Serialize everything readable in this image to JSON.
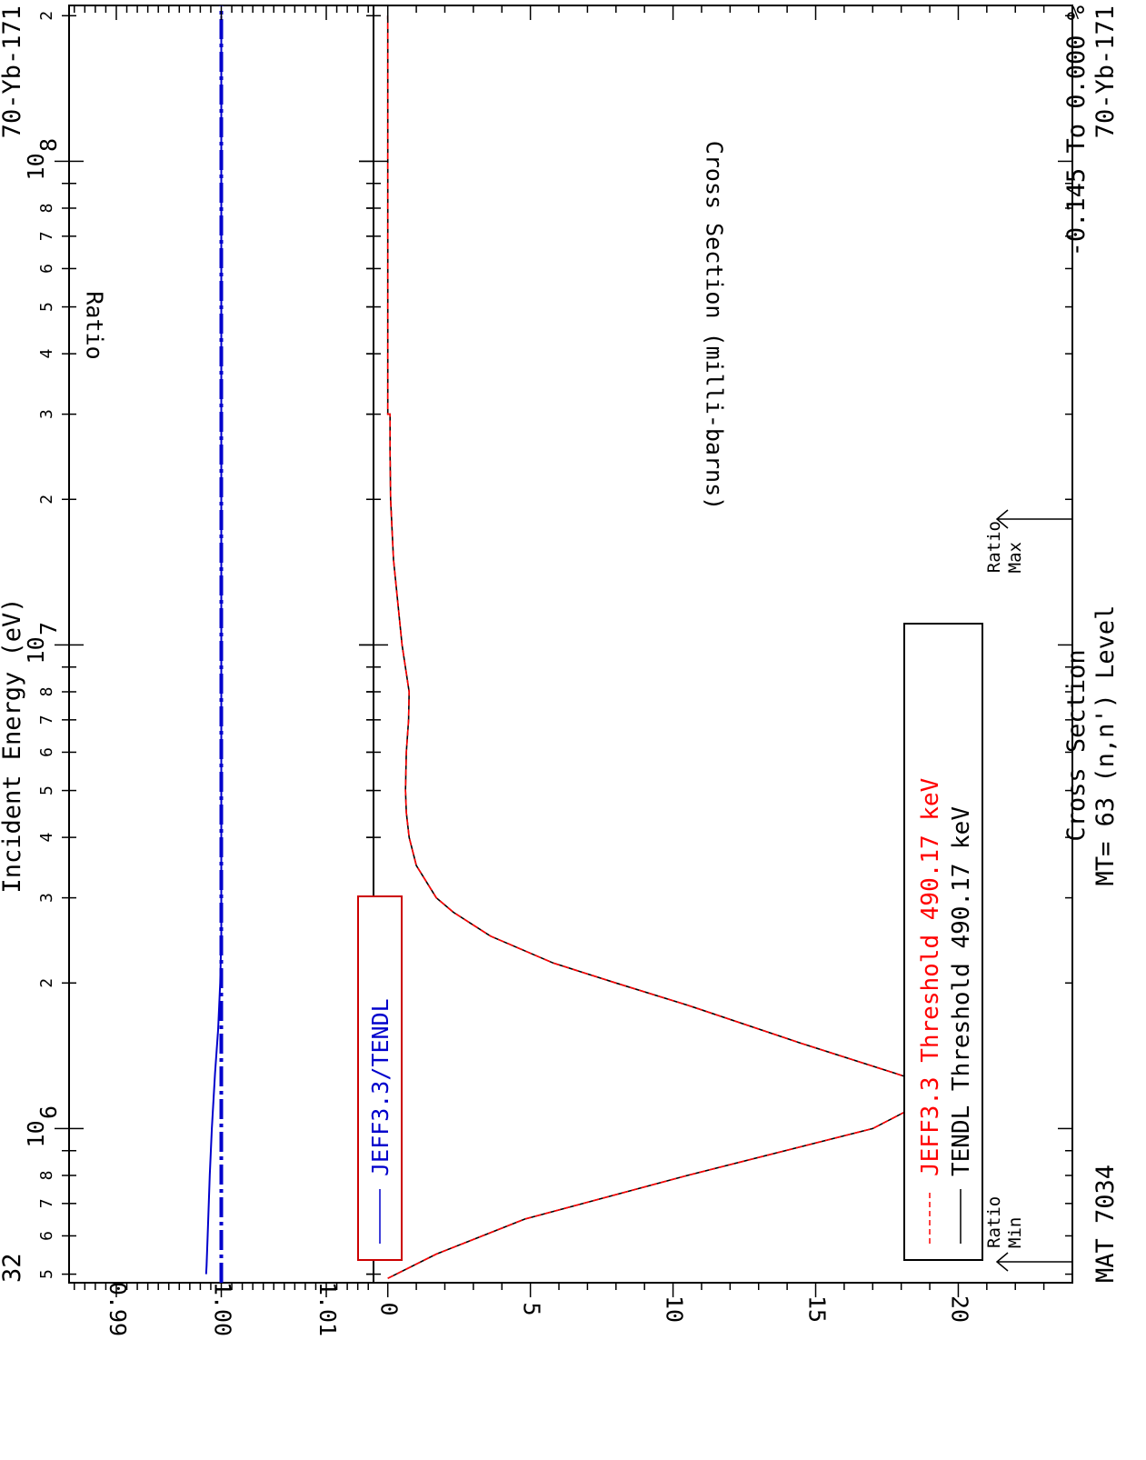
{
  "header": {
    "mat": "MAT 7034",
    "reaction": "MT= 63 (n,n') Level",
    "quantity": "Cross Section",
    "isotope_top": "70-Yb-171",
    "isotope_bottom": "70-Yb-171",
    "ratio_range": "-0.145 To 0.000 %",
    "page_number": "32"
  },
  "markers": {
    "min": [
      "Min",
      "Ratio"
    ],
    "max": [
      "Max",
      "Ratio"
    ]
  },
  "colors": {
    "tendl": "#000000",
    "jeff": "#ff0000",
    "ratio": "#0000cc",
    "axes": "#000000"
  },
  "chart_data": [
    {
      "type": "line",
      "title": "MT= 63 (n,n') Level Cross Section",
      "xlabel": "Incident Energy (eV)",
      "ylabel": "Cross Section (milli-barns)",
      "x_scale": "log",
      "xlim": [
        480000,
        210000000
      ],
      "ylim": [
        -0.5,
        24
      ],
      "yticks": [
        0,
        5,
        10,
        15,
        20
      ],
      "ytick_labels": [
        "0",
        "5",
        "10",
        "15",
        "20"
      ],
      "grid": false,
      "legend_position": "top-left",
      "series": [
        {
          "name": "TENDL Threshold 490.17 keV",
          "color": "#000000",
          "style": "solid",
          "x": [
            490170,
            550000,
            650000,
            800000,
            1000000,
            1200000,
            1300000,
            1500000,
            1800000,
            2000000,
            2200000,
            2500000,
            2800000,
            3000000,
            3500000,
            4000000,
            4500000,
            5000000,
            6000000,
            7000000,
            8000000,
            10000000,
            15000000,
            20000000,
            25000000,
            30000000,
            30000001,
            200000000
          ],
          "y": [
            0,
            1.7,
            4.8,
            10.5,
            17.0,
            19.6,
            17.8,
            14.5,
            10.5,
            8.0,
            5.8,
            3.6,
            2.3,
            1.7,
            1.0,
            0.75,
            0.65,
            0.62,
            0.65,
            0.73,
            0.75,
            0.5,
            0.2,
            0.1,
            0.08,
            0.08,
            0.0,
            0.0
          ]
        },
        {
          "name": "JEFF3.3 Threshold 490.17 keV",
          "color": "#ff0000",
          "style": "dashed",
          "x": [
            490170,
            550000,
            650000,
            800000,
            1000000,
            1200000,
            1300000,
            1500000,
            1800000,
            2000000,
            2200000,
            2500000,
            2800000,
            3000000,
            3500000,
            4000000,
            4500000,
            5000000,
            6000000,
            7000000,
            8000000,
            10000000,
            15000000,
            20000000,
            25000000,
            30000000,
            30000001,
            200000000
          ],
          "y": [
            0,
            1.7,
            4.8,
            10.5,
            17.0,
            19.6,
            17.8,
            14.5,
            10.5,
            8.0,
            5.8,
            3.6,
            2.3,
            1.7,
            1.0,
            0.75,
            0.65,
            0.62,
            0.65,
            0.73,
            0.75,
            0.5,
            0.2,
            0.1,
            0.08,
            0.08,
            0.0,
            0.0
          ]
        }
      ]
    },
    {
      "type": "line",
      "xlabel": "Incident Energy (eV)",
      "ylabel": "Ratio",
      "x_scale": "log",
      "xlim": [
        480000,
        210000000
      ],
      "ylim": [
        0.9855,
        1.0145
      ],
      "yticks": [
        0.99,
        1.0,
        1.01
      ],
      "ytick_labels": [
        "0.99",
        "1.00",
        "1.01"
      ],
      "xtick_labels": [
        "5",
        "6",
        "7",
        "8",
        "10",
        "2",
        "3",
        "4",
        "5",
        "6",
        "7",
        "8",
        "10",
        "2",
        "3",
        "4",
        "5",
        "6",
        "7",
        "8",
        "10",
        "2"
      ],
      "grid": false,
      "legend_position": "top-left",
      "series": [
        {
          "name": "JEFF3.3/TENDL",
          "color": "#0000cc",
          "style": "solid",
          "x": [
            500000,
            520000,
            600000,
            800000,
            1000000,
            1300000,
            1600000,
            2000000,
            2500000,
            3000000,
            200000000
          ],
          "y": [
            0.99855,
            0.9986,
            0.9987,
            0.9989,
            0.9991,
            0.9994,
            0.9997,
            0.9999,
            1.0,
            1.0,
            1.0
          ]
        }
      ]
    }
  ]
}
